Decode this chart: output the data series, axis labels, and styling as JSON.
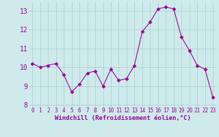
{
  "x": [
    0,
    1,
    2,
    3,
    4,
    5,
    6,
    7,
    8,
    9,
    10,
    11,
    12,
    13,
    14,
    15,
    16,
    17,
    18,
    19,
    20,
    21,
    22,
    23
  ],
  "y": [
    10.2,
    10.0,
    10.1,
    10.2,
    9.6,
    8.7,
    9.1,
    9.7,
    9.8,
    9.0,
    9.9,
    9.3,
    9.4,
    10.1,
    11.9,
    12.4,
    13.1,
    13.2,
    13.1,
    11.6,
    10.9,
    10.1,
    9.9,
    8.4
  ],
  "line_color": "#990099",
  "marker": "D",
  "marker_size": 2.5,
  "bg_color": "#ceeaea",
  "grid_color": "#aacccc",
  "xlabel": "Windchill (Refroidissement éolien,°C)",
  "xlabel_color": "#990099",
  "tick_color": "#990099",
  "ylim": [
    7.9,
    13.5
  ],
  "xlim": [
    -0.5,
    23.5
  ],
  "yticks": [
    8,
    9,
    10,
    11,
    12,
    13
  ],
  "xticks": [
    0,
    1,
    2,
    3,
    4,
    5,
    6,
    7,
    8,
    9,
    10,
    11,
    12,
    13,
    14,
    15,
    16,
    17,
    18,
    19,
    20,
    21,
    22,
    23
  ],
  "ytick_fontsize": 7,
  "xtick_fontsize": 5.5,
  "xlabel_fontsize": 6.5
}
